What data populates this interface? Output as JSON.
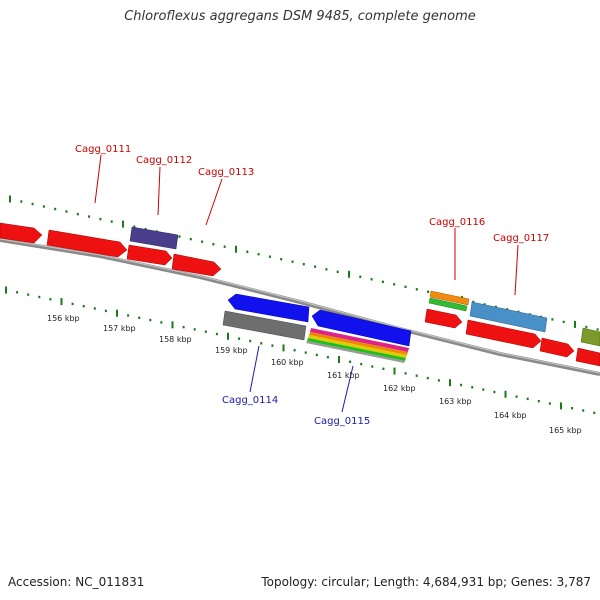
{
  "title": "Chloroflexus aggregans DSM 9485, complete genome",
  "footer": {
    "accession": "Accession: NC_011831",
    "stats": "Topology: circular; Length: 4,684,931 bp; Genes: 3,787"
  },
  "ruler_labels": [
    "156 kbp",
    "157 kbp",
    "158 kbp",
    "159 kbp",
    "160 kbp",
    "161 kbp",
    "162 kbp",
    "163 kbp",
    "164 kbp",
    "165 kbp"
  ],
  "gene_labels": [
    "Cagg_0111",
    "Cagg_0112",
    "Cagg_0113",
    "Cagg_0114",
    "Cagg_0115",
    "Cagg_0116",
    "Cagg_0117"
  ],
  "colors": {
    "forward_label": "#cc0000",
    "reverse_label": "#1a1aaa",
    "ticks": "#1a7a1a",
    "backbone": "#888888",
    "gene_red": "#ee1111",
    "gene_blue": "#1111ee",
    "gene_purple": "#4a3e8c",
    "gene_grey": "#707070",
    "gene_steel": "#4a90c8",
    "gene_olive": "#7a9a2a"
  }
}
